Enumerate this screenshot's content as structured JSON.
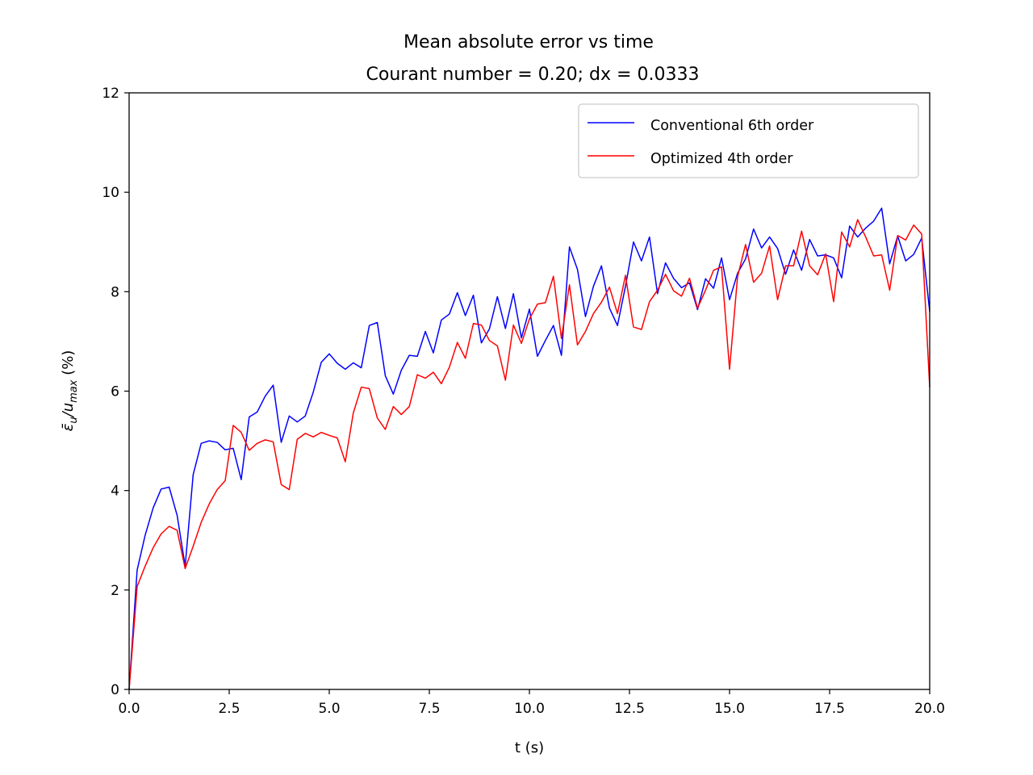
{
  "chart_data": {
    "type": "line",
    "title": "Mean absolute error vs time",
    "subtitle": "Courant number = 0.20; dx = 0.0333",
    "xlabel": "t (s)",
    "ylabel": "ε̄u/umax (%)",
    "ylabel_parts": {
      "epsilon": "ε̄",
      "sub_u": "u",
      "slash": "/u",
      "sub_max": "max",
      "unit": " (%)"
    },
    "xlim": [
      0,
      20
    ],
    "ylim": [
      0,
      12
    ],
    "xticks": [
      0,
      2.5,
      5,
      7.5,
      10,
      12.5,
      15,
      17.5,
      20
    ],
    "xtick_labels": [
      "0.0",
      "2.5",
      "5.0",
      "7.5",
      "10.0",
      "12.5",
      "15.0",
      "17.5",
      "20.0"
    ],
    "yticks": [
      0,
      2,
      4,
      6,
      8,
      10,
      12
    ],
    "ytick_labels": [
      "0",
      "2",
      "4",
      "6",
      "8",
      "10",
      "12"
    ],
    "grid": false,
    "legend_position": "top-right",
    "x": [
      0.0,
      0.2,
      0.4,
      0.6,
      0.8,
      1.0,
      1.2,
      1.4,
      1.6,
      1.8,
      2.0,
      2.2,
      2.4,
      2.6,
      2.8,
      3.0,
      3.2,
      3.4,
      3.6,
      3.8,
      4.0,
      4.2,
      4.4,
      4.6,
      4.8,
      5.0,
      5.2,
      5.4,
      5.6,
      5.8,
      6.0,
      6.2,
      6.4,
      6.6,
      6.8,
      7.0,
      7.2,
      7.4,
      7.6,
      7.8,
      8.0,
      8.2,
      8.4,
      8.6,
      8.8,
      9.0,
      9.2,
      9.4,
      9.6,
      9.8,
      10.0,
      10.2,
      10.4,
      10.6,
      10.8,
      11.0,
      11.2,
      11.4,
      11.6,
      11.8,
      12.0,
      12.2,
      12.4,
      12.6,
      12.8,
      13.0,
      13.2,
      13.4,
      13.6,
      13.8,
      14.0,
      14.2,
      14.4,
      14.6,
      14.8,
      15.0,
      15.2,
      15.4,
      15.6,
      15.8,
      16.0,
      16.2,
      16.4,
      16.6,
      16.8,
      17.0,
      17.2,
      17.4,
      17.6,
      17.8,
      18.0,
      18.2,
      18.4,
      18.6,
      18.8,
      19.0,
      19.2,
      19.4,
      19.6,
      19.8,
      20.0
    ],
    "series": [
      {
        "name": "Conventional 6th order",
        "color": "#0000ff",
        "values": [
          0.0,
          2.4,
          3.1,
          3.65,
          4.03,
          4.07,
          3.5,
          2.48,
          4.32,
          4.95,
          5.0,
          4.97,
          4.82,
          4.85,
          4.22,
          5.48,
          5.58,
          5.9,
          6.12,
          4.97,
          5.5,
          5.38,
          5.5,
          5.98,
          6.58,
          6.75,
          6.56,
          6.44,
          6.57,
          6.47,
          7.32,
          7.38,
          6.31,
          5.94,
          6.42,
          6.72,
          6.7,
          7.2,
          6.77,
          7.43,
          7.55,
          7.98,
          7.52,
          7.93,
          6.97,
          7.25,
          7.9,
          7.26,
          7.96,
          7.07,
          7.65,
          6.7,
          7.02,
          7.32,
          6.72,
          8.9,
          8.45,
          7.5,
          8.11,
          8.52,
          7.67,
          7.32,
          8.11,
          9.0,
          8.62,
          9.1,
          7.96,
          8.58,
          8.27,
          8.08,
          8.18,
          7.64,
          8.26,
          8.07,
          8.68,
          7.84,
          8.37,
          8.66,
          9.26,
          8.88,
          9.1,
          8.87,
          8.35,
          8.84,
          8.43,
          9.05,
          8.72,
          8.74,
          8.68,
          8.28,
          9.32,
          9.1,
          9.28,
          9.42,
          9.68,
          8.56,
          9.12,
          8.62,
          8.75,
          9.08,
          7.6
        ]
      },
      {
        "name": "Optimized 4th order",
        "color": "#ff0000",
        "values": [
          0.0,
          2.07,
          2.48,
          2.85,
          3.13,
          3.28,
          3.2,
          2.43,
          2.88,
          3.36,
          3.73,
          4.02,
          4.2,
          5.31,
          5.17,
          4.81,
          4.95,
          5.02,
          4.98,
          4.12,
          4.02,
          5.03,
          5.15,
          5.08,
          5.17,
          5.11,
          5.06,
          4.58,
          5.56,
          6.08,
          6.05,
          5.46,
          5.23,
          5.69,
          5.53,
          5.69,
          6.33,
          6.26,
          6.38,
          6.15,
          6.48,
          6.98,
          6.66,
          7.36,
          7.33,
          7.02,
          6.91,
          6.22,
          7.33,
          6.96,
          7.45,
          7.75,
          7.78,
          8.31,
          7.06,
          8.14,
          6.93,
          7.2,
          7.56,
          7.79,
          8.09,
          7.56,
          8.33,
          7.29,
          7.24,
          7.8,
          8.03,
          8.35,
          8.02,
          7.91,
          8.27,
          7.67,
          8.03,
          8.43,
          8.5,
          6.44,
          8.3,
          8.95,
          8.19,
          8.37,
          8.92,
          7.84,
          8.52,
          8.52,
          9.22,
          8.52,
          8.34,
          8.76,
          7.8,
          9.2,
          8.9,
          9.45,
          9.1,
          8.72,
          8.74,
          8.03,
          9.13,
          9.04,
          9.34,
          9.16,
          6.08
        ]
      }
    ]
  }
}
